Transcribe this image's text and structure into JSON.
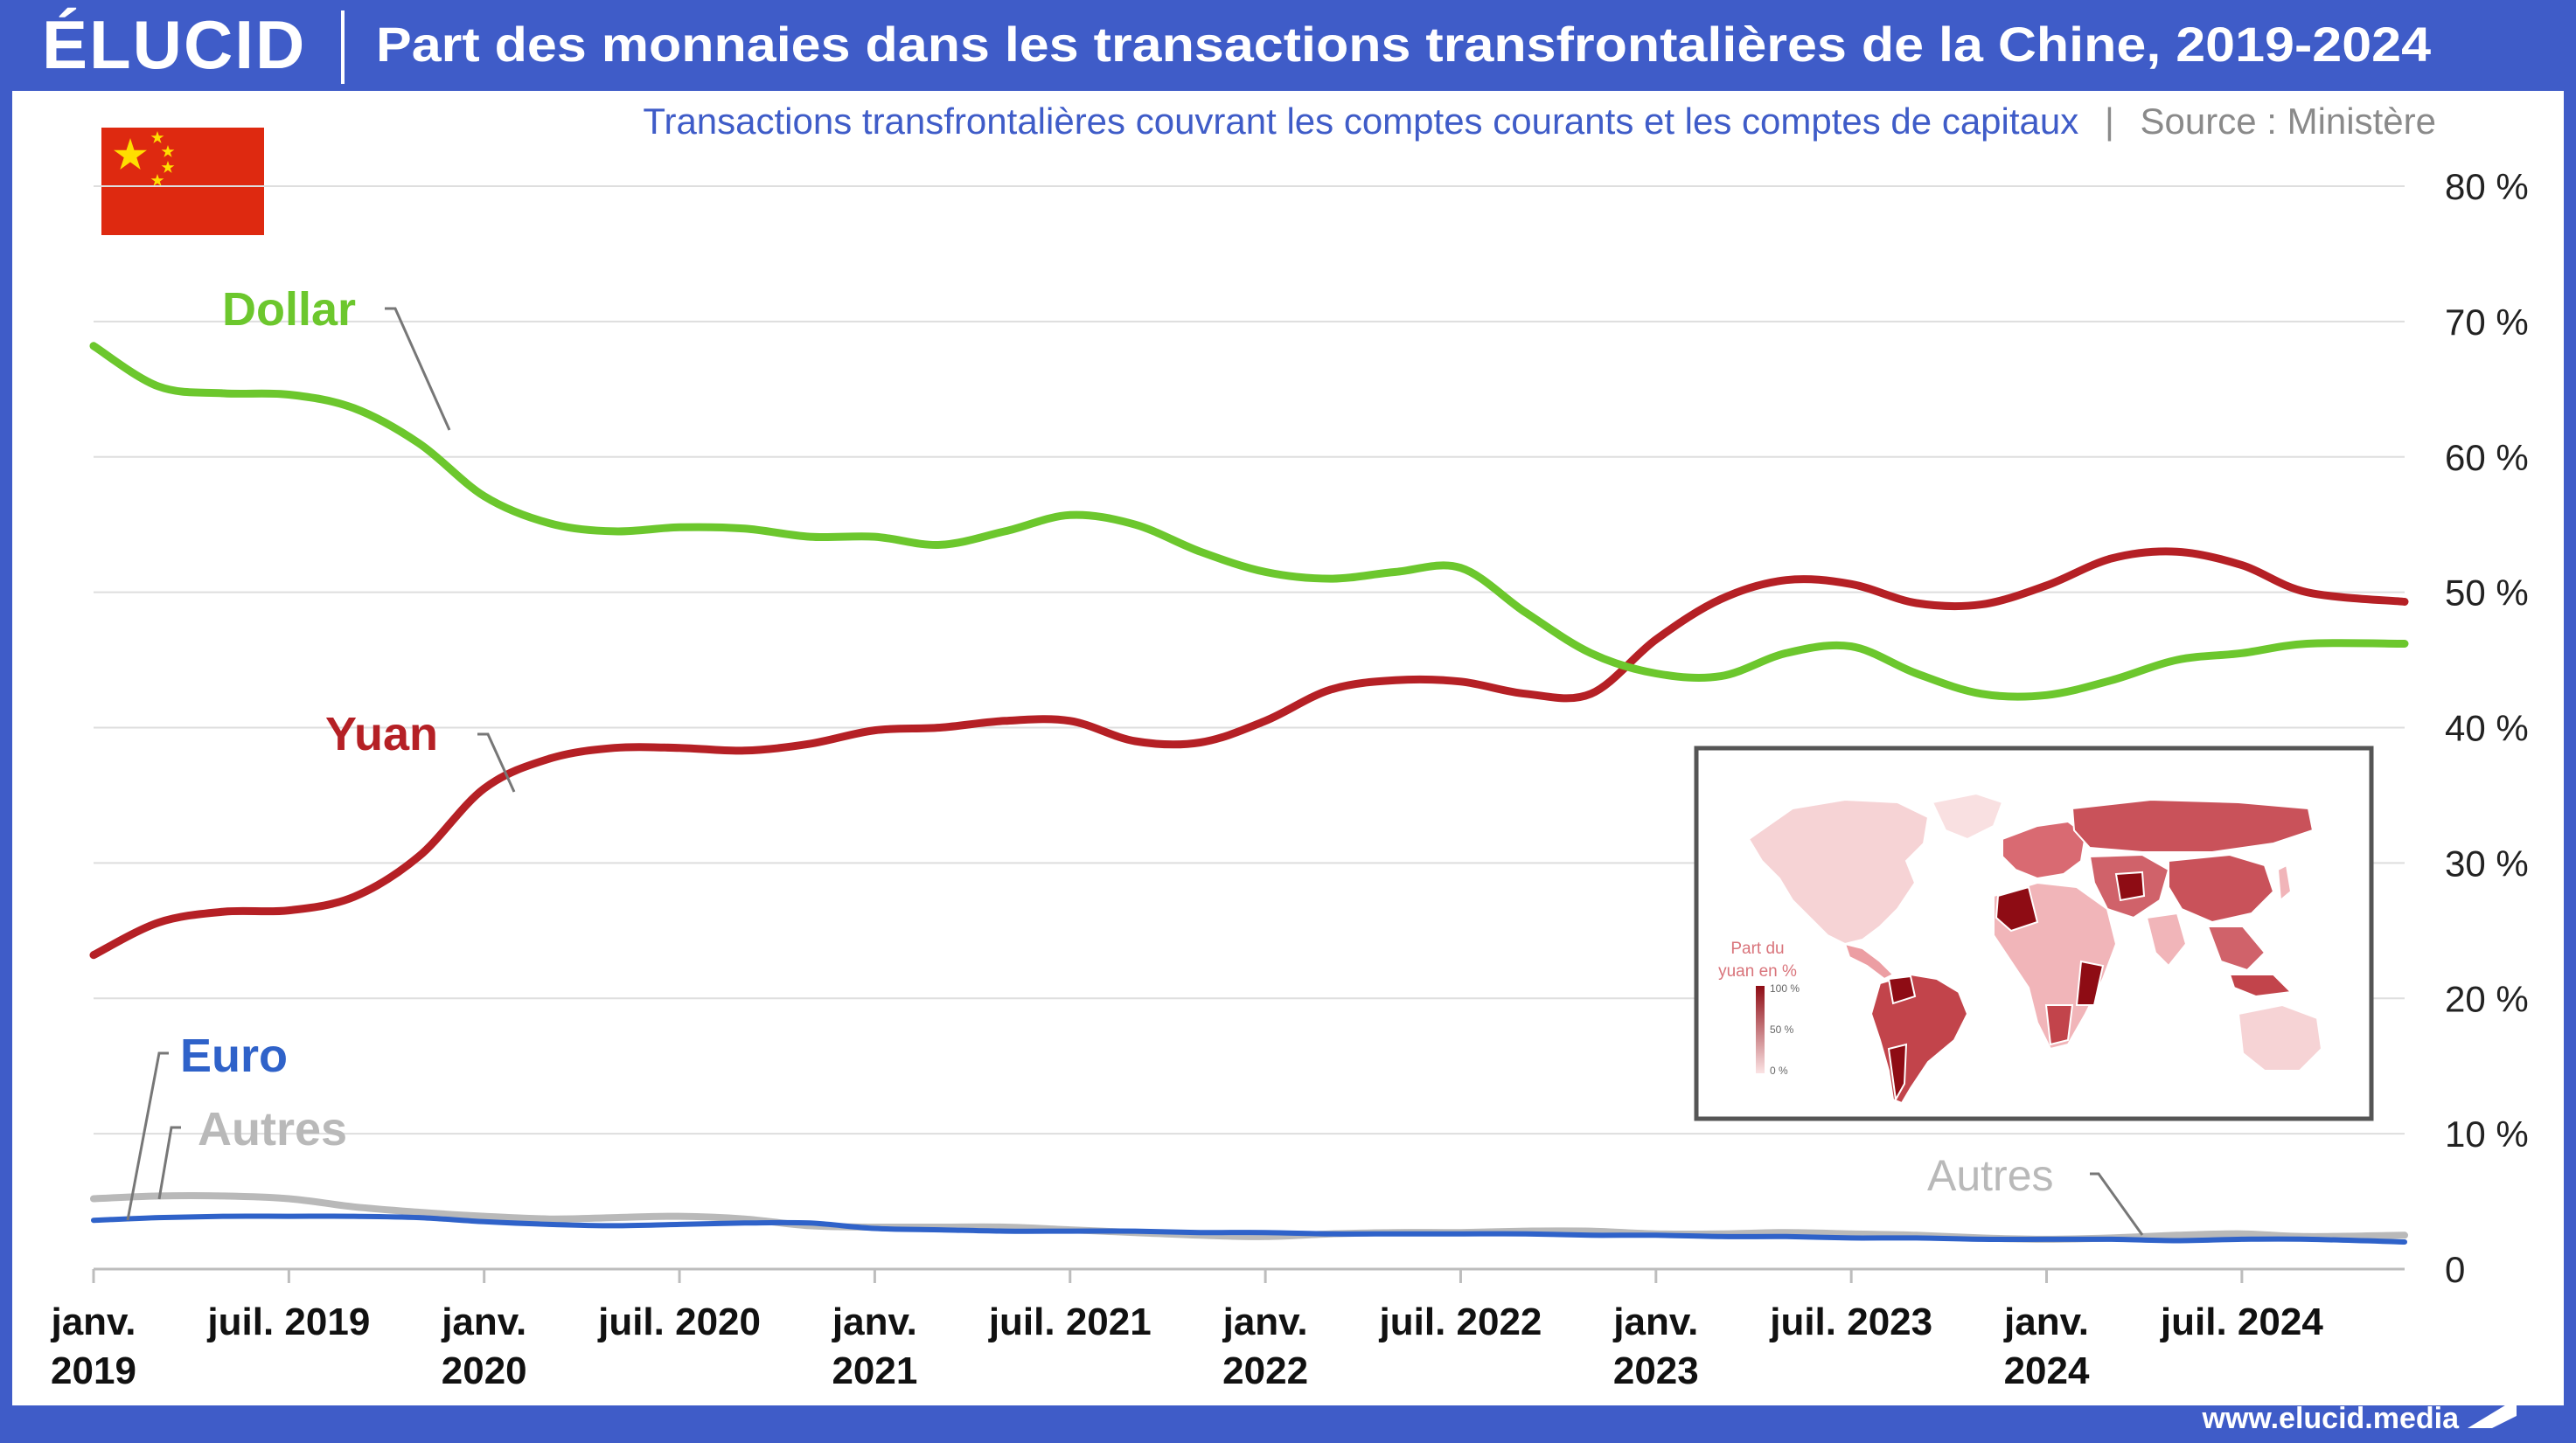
{
  "brand": {
    "logo_text": "ÉLUCID",
    "website": "www.elucid.media"
  },
  "header": {
    "title": "Part des monnaies dans les transactions transfrontalières de la Chine, 2019-2024"
  },
  "subtitle": {
    "text": "Transactions transfrontalières couvrant les comptes courants et les comptes de capitaux",
    "separator": "|",
    "source": "Source : Ministère"
  },
  "colors": {
    "frame": "#3f5cc8",
    "dollar": "#6cc72d",
    "yuan": "#b52025",
    "euro": "#2f62c9",
    "autres": "#b9b9b9",
    "grid": "#dedede",
    "flag": "#de2910",
    "flag_star": "#ffde00",
    "map_stroke": "#555555"
  },
  "flag_icon": "china-flag-icon",
  "labels": {
    "dollar": "Dollar",
    "yuan": "Yuan",
    "euro": "Euro",
    "autres_left": "Autres",
    "autres_right": "Autres"
  },
  "inset_map": {
    "legend_title_line1": "Part du",
    "legend_title_line2": "yuan en %",
    "legend_ticks": [
      "100 %",
      "50 %",
      "0 %"
    ]
  },
  "chart_data": {
    "type": "line",
    "x": [
      "2019-01",
      "2019-03",
      "2019-05",
      "2019-07",
      "2019-09",
      "2019-11",
      "2020-01",
      "2020-03",
      "2020-05",
      "2020-07",
      "2020-09",
      "2020-11",
      "2021-01",
      "2021-03",
      "2021-05",
      "2021-07",
      "2021-09",
      "2021-11",
      "2022-01",
      "2022-03",
      "2022-05",
      "2022-07",
      "2022-09",
      "2022-11",
      "2023-01",
      "2023-03",
      "2023-05",
      "2023-07",
      "2023-09",
      "2023-11",
      "2024-01",
      "2024-03",
      "2024-05",
      "2024-07",
      "2024-09",
      "2024-12"
    ],
    "series": [
      {
        "name": "Dollar",
        "values": [
          68.2,
          65.2,
          64.7,
          64.6,
          63.6,
          61.0,
          57.1,
          55.1,
          54.5,
          54.8,
          54.7,
          54.1,
          54.1,
          53.5,
          54.5,
          55.7,
          55.0,
          53.0,
          51.5,
          51.0,
          51.5,
          51.8,
          48.5,
          45.5,
          44.0,
          43.8,
          45.5,
          46.0,
          44.0,
          42.5,
          42.4,
          43.5,
          45.0,
          45.5,
          46.2,
          46.2
        ]
      },
      {
        "name": "Yuan",
        "values": [
          23.2,
          25.6,
          26.4,
          26.5,
          27.5,
          30.5,
          35.5,
          37.7,
          38.5,
          38.5,
          38.3,
          38.8,
          39.8,
          40.0,
          40.5,
          40.5,
          39.0,
          38.9,
          40.5,
          42.8,
          43.5,
          43.4,
          42.5,
          42.5,
          46.5,
          49.5,
          50.9,
          50.6,
          49.2,
          49.1,
          50.5,
          52.5,
          53.0,
          52.0,
          50.0,
          49.3
        ]
      },
      {
        "name": "Euro",
        "values": [
          3.6,
          3.8,
          3.9,
          3.9,
          3.9,
          3.8,
          3.5,
          3.3,
          3.2,
          3.3,
          3.4,
          3.4,
          3.0,
          2.9,
          2.8,
          2.8,
          2.8,
          2.7,
          2.7,
          2.6,
          2.6,
          2.6,
          2.6,
          2.5,
          2.5,
          2.4,
          2.4,
          2.3,
          2.3,
          2.2,
          2.2,
          2.2,
          2.1,
          2.2,
          2.2,
          2.0
        ]
      },
      {
        "name": "Autres",
        "values": [
          5.2,
          5.4,
          5.4,
          5.2,
          4.6,
          4.2,
          3.9,
          3.7,
          3.8,
          3.9,
          3.7,
          3.2,
          3.1,
          3.1,
          3.1,
          2.9,
          2.7,
          2.5,
          2.4,
          2.6,
          2.7,
          2.7,
          2.8,
          2.8,
          2.6,
          2.6,
          2.7,
          2.6,
          2.5,
          2.3,
          2.2,
          2.3,
          2.5,
          2.6,
          2.4,
          2.5
        ]
      }
    ],
    "x_ticks": [
      {
        "date": "2019-01",
        "line1": "janv.",
        "line2": "2019"
      },
      {
        "date": "2019-07",
        "line1": "juil. 2019",
        "line2": ""
      },
      {
        "date": "2020-01",
        "line1": "janv.",
        "line2": "2020"
      },
      {
        "date": "2020-07",
        "line1": "juil. 2020",
        "line2": ""
      },
      {
        "date": "2021-01",
        "line1": "janv.",
        "line2": "2021"
      },
      {
        "date": "2021-07",
        "line1": "juil. 2021",
        "line2": ""
      },
      {
        "date": "2022-01",
        "line1": "janv.",
        "line2": "2022"
      },
      {
        "date": "2022-07",
        "line1": "juil. 2022",
        "line2": ""
      },
      {
        "date": "2023-01",
        "line1": "janv.",
        "line2": "2023"
      },
      {
        "date": "2023-07",
        "line1": "juil. 2023",
        "line2": ""
      },
      {
        "date": "2024-01",
        "line1": "janv.",
        "line2": "2024"
      },
      {
        "date": "2024-07",
        "line1": "juil. 2024",
        "line2": ""
      }
    ],
    "y_ticks": [
      {
        "value": 0,
        "label": "0"
      },
      {
        "value": 10,
        "label": "10 %"
      },
      {
        "value": 20,
        "label": "20 %"
      },
      {
        "value": 30,
        "label": "30 %"
      },
      {
        "value": 40,
        "label": "40 %"
      },
      {
        "value": 50,
        "label": "50 %"
      },
      {
        "value": 60,
        "label": "60 %"
      },
      {
        "value": 70,
        "label": "70 %"
      },
      {
        "value": 80,
        "label": "80 %"
      }
    ],
    "ylim": [
      0,
      80
    ],
    "xlim": [
      "2019-01",
      "2024-12"
    ],
    "grid": true,
    "y_axis_side": "right"
  }
}
